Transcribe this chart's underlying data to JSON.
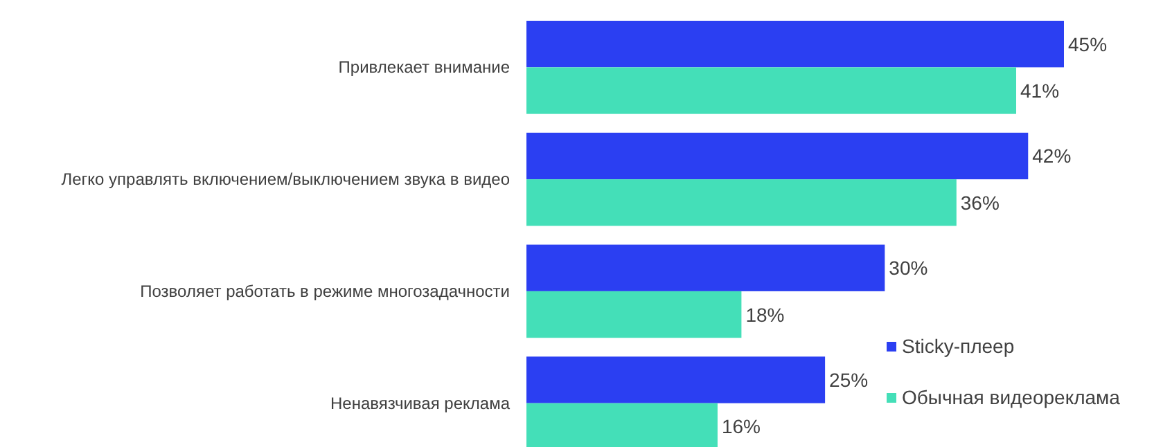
{
  "chart_data": {
    "type": "bar",
    "orientation": "horizontal",
    "categories": [
      "Привлекает внимание",
      "Легко управлять включением/выключением звука в видео",
      "Позволяет работать в режиме многозадачности",
      "Ненавязчивая реклама"
    ],
    "series": [
      {
        "name": "Sticky-плеер",
        "color": "#2b3ff2",
        "values": [
          45,
          42,
          30,
          25
        ],
        "value_labels": [
          "45%",
          "42%",
          "30%",
          "25%"
        ]
      },
      {
        "name": "Обычная видеореклама",
        "color": "#44dfb8",
        "values": [
          41,
          36,
          18,
          16
        ],
        "value_labels": [
          "41%",
          "36%",
          "18%",
          "16%"
        ]
      }
    ],
    "legend": "bottom right"
  }
}
